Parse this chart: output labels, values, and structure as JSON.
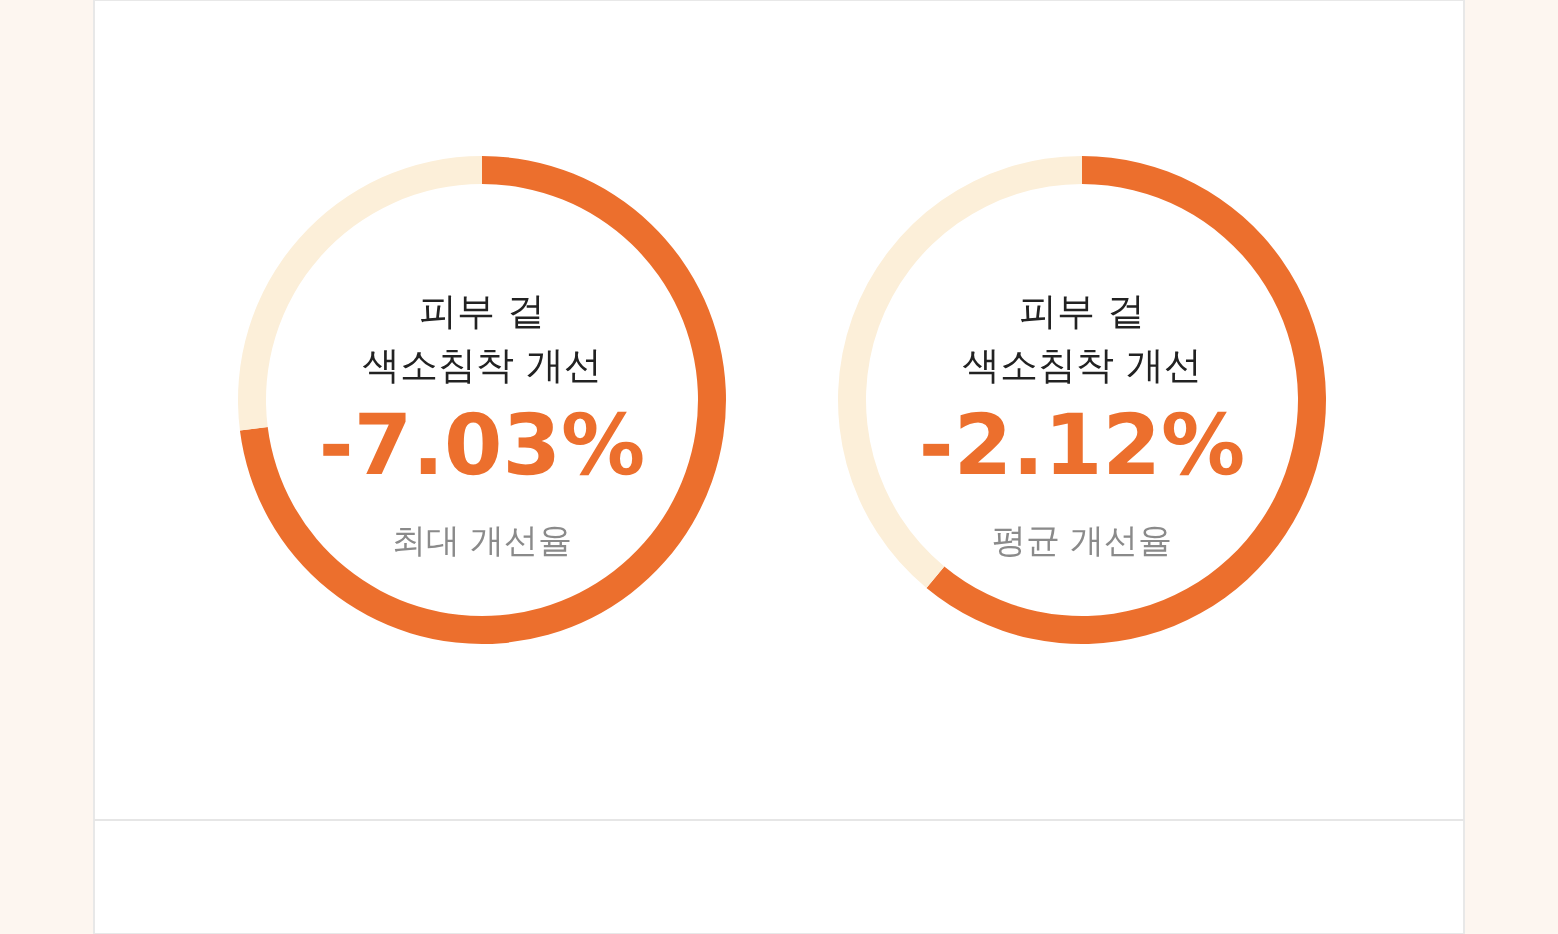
{
  "chart_data": [
    {
      "type": "donut",
      "title": "피부 겉 색소침착 개선",
      "categories": [
        null,
        null
      ],
      "values": [
        73,
        27
      ],
      "colors": [
        "#ec6f2d",
        "#fcefd9"
      ],
      "annotations": [
        "-7.03%",
        "최대 개선율"
      ]
    },
    {
      "type": "donut",
      "title": "피부 겉 색소침착 개선",
      "categories": [
        null,
        null
      ],
      "values": [
        61,
        39
      ],
      "colors": [
        "#ec6f2d",
        "#fcefd9"
      ],
      "annotations": [
        "-2.12%",
        "평균 개선율"
      ]
    }
  ]
}
